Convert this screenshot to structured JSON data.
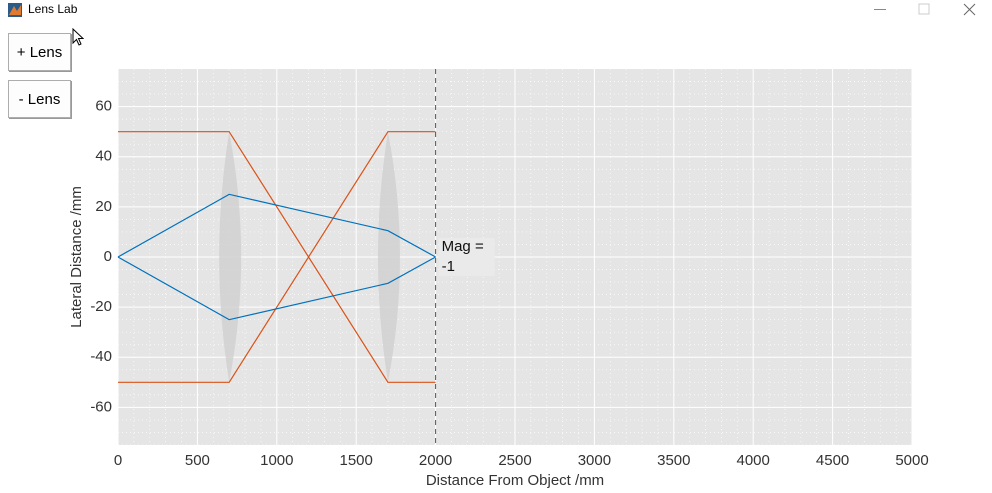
{
  "window": {
    "title": "Lens Lab"
  },
  "buttons": [
    "+ Lens",
    "- Lens"
  ],
  "chart_data": {
    "type": "line",
    "xlabel": "Distance From Object /mm",
    "ylabel": "Lateral Distance /mm",
    "xlim": [
      0,
      5000
    ],
    "ylim": [
      -75,
      75
    ],
    "xticks": [
      0,
      500,
      1000,
      1500,
      2000,
      2500,
      3000,
      3500,
      4000,
      4500,
      5000
    ],
    "yticks": [
      -60,
      -40,
      -20,
      0,
      20,
      40,
      60
    ],
    "grid": true,
    "minor_grid": true,
    "lens_positions": [
      700,
      1700
    ],
    "image_plane": 2000,
    "annotation": {
      "lines": [
        "Mag =",
        "-1"
      ],
      "x": 2000,
      "y": 0
    },
    "series": [
      {
        "color": "#d95319",
        "x": [
          0,
          700,
          1700,
          2000
        ],
        "values": [
          50,
          50,
          -50,
          -50
        ]
      },
      {
        "color": "#d95319",
        "x": [
          0,
          700,
          1700,
          2000
        ],
        "values": [
          -50,
          -50,
          50,
          50
        ]
      },
      {
        "color": "#0072bd",
        "x": [
          0,
          700,
          1700,
          2000
        ],
        "values": [
          0,
          25,
          10.5,
          0
        ]
      },
      {
        "color": "#0072bd",
        "x": [
          0,
          700,
          1700,
          2000
        ],
        "values": [
          0,
          -25,
          -10.5,
          0
        ]
      }
    ]
  }
}
